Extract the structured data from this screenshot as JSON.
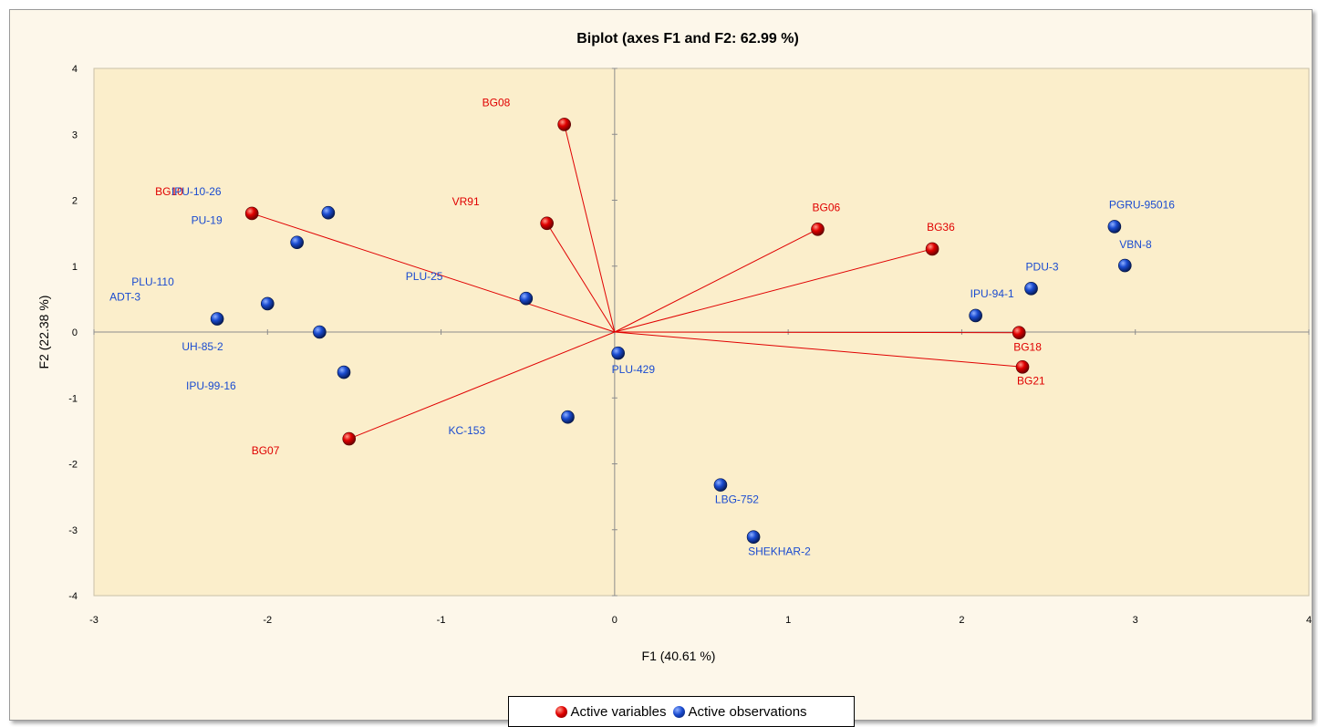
{
  "chart_data": {
    "type": "scatter",
    "title": "Biplot (axes F1 and F2: 62.99 %)",
    "xlabel": "F1 (40.61 %)",
    "ylabel": "F2 (22.38 %)",
    "xlim": [
      -3,
      4
    ],
    "ylim": [
      -4,
      4
    ],
    "xticks": [
      "-3",
      "-2",
      "-1",
      "0",
      "1",
      "2",
      "3",
      "4"
    ],
    "yticks": [
      "4",
      "3",
      "2",
      "1",
      "0",
      "-1",
      "-2",
      "-3",
      "-4"
    ],
    "grid": false,
    "legend_position": "bottom",
    "colors": {
      "variables": "#e00000",
      "observations": "#1a4bd0",
      "plot_area": "#fbeecb",
      "vector_line": "#e00000"
    },
    "series": [
      {
        "name": "Active variables",
        "points": [
          {
            "label": "BG08",
            "x": -0.29,
            "y": 3.15
          },
          {
            "label": "BG10",
            "x": -2.09,
            "y": 1.8
          },
          {
            "label": "VR91",
            "x": -0.39,
            "y": 1.65
          },
          {
            "label": "BG06",
            "x": 1.17,
            "y": 1.56
          },
          {
            "label": "BG36",
            "x": 1.83,
            "y": 1.26
          },
          {
            "label": "BG18",
            "x": 2.33,
            "y": -0.01
          },
          {
            "label": "BG21",
            "x": 2.35,
            "y": -0.53
          },
          {
            "label": "BG07",
            "x": -1.53,
            "y": -1.62
          }
        ]
      },
      {
        "name": "Active observations",
        "points": [
          {
            "label": "IPU-10-26",
            "x": -1.65,
            "y": 1.81
          },
          {
            "label": "PU-19",
            "x": -1.83,
            "y": 1.36
          },
          {
            "label": "PLU-110",
            "x": -2.0,
            "y": 0.43
          },
          {
            "label": "ADT-3",
            "x": -2.29,
            "y": 0.2
          },
          {
            "label": "UH-85-2",
            "x": -1.7,
            "y": 0.0
          },
          {
            "label": "IPU-99-16",
            "x": -1.56,
            "y": -0.61
          },
          {
            "label": "PLU-25",
            "x": -0.51,
            "y": 0.51
          },
          {
            "label": "PLU-429",
            "x": 0.02,
            "y": -0.32
          },
          {
            "label": "KC-153",
            "x": -0.27,
            "y": -1.29
          },
          {
            "label": "LBG-752",
            "x": 0.61,
            "y": -2.32
          },
          {
            "label": "SHEKHAR-2",
            "x": 0.8,
            "y": -3.11
          },
          {
            "label": "IPU-94-1",
            "x": 2.08,
            "y": 0.25
          },
          {
            "label": "PDU-3",
            "x": 2.4,
            "y": 0.66
          },
          {
            "label": "PGRU-95016",
            "x": 2.88,
            "y": 1.6
          },
          {
            "label": "VBN-8",
            "x": 2.94,
            "y": 1.01
          }
        ]
      }
    ]
  },
  "legend": {
    "variables_label": "Active variables",
    "observations_label": "Active observations"
  }
}
